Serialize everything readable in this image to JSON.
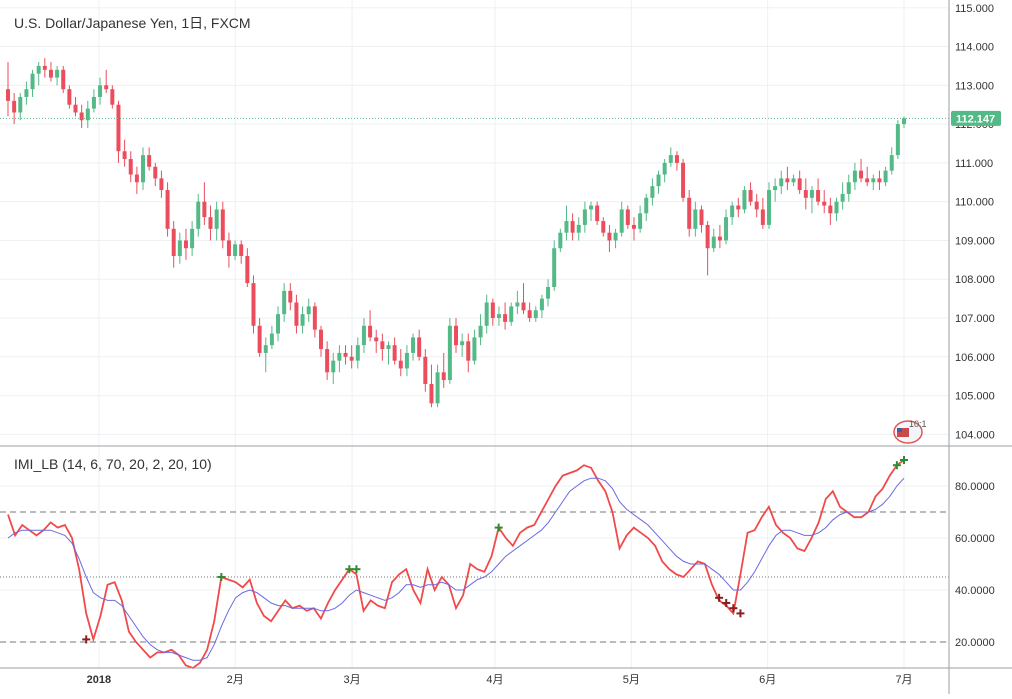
{
  "chart_data": [
    {
      "type": "candlestick",
      "title": "U.S. Dollar/Japanese Yen, 1日, FXCM",
      "ylim": [
        103.7,
        115.2
      ],
      "y_ticks": [
        "115.000",
        "114.000",
        "113.000",
        "112.000",
        "111.000",
        "110.000",
        "109.000",
        "108.000",
        "107.000",
        "106.000",
        "105.000",
        "104.000"
      ],
      "y_tick_values": [
        115,
        114,
        113,
        112,
        111,
        110,
        109,
        108,
        107,
        106,
        105,
        104
      ],
      "last_price": 112.147,
      "last_price_label": "112.147",
      "up_color": "#53b987",
      "down_color": "#eb4d5c",
      "candles": [
        [
          112.9,
          113.6,
          112.2,
          112.6
        ],
        [
          112.6,
          112.8,
          112.0,
          112.3
        ],
        [
          112.3,
          112.8,
          112.1,
          112.7
        ],
        [
          112.7,
          113.1,
          112.5,
          112.9
        ],
        [
          112.9,
          113.4,
          112.7,
          113.3
        ],
        [
          113.3,
          113.6,
          113.0,
          113.5
        ],
        [
          113.5,
          113.7,
          113.2,
          113.4
        ],
        [
          113.4,
          113.6,
          113.1,
          113.2
        ],
        [
          113.2,
          113.5,
          113.0,
          113.4
        ],
        [
          113.4,
          113.5,
          112.8,
          112.9
        ],
        [
          112.9,
          113.0,
          112.4,
          112.5
        ],
        [
          112.5,
          112.7,
          112.2,
          112.3
        ],
        [
          112.3,
          112.5,
          111.9,
          112.1
        ],
        [
          112.1,
          112.6,
          111.9,
          112.4
        ],
        [
          112.4,
          112.9,
          112.3,
          112.7
        ],
        [
          112.7,
          113.2,
          112.5,
          113.0
        ],
        [
          113.0,
          113.4,
          112.8,
          112.9
        ],
        [
          112.9,
          113.0,
          112.4,
          112.5
        ],
        [
          112.5,
          112.6,
          111.0,
          111.3
        ],
        [
          111.3,
          111.6,
          110.9,
          111.1
        ],
        [
          111.1,
          111.3,
          110.5,
          110.7
        ],
        [
          110.7,
          110.9,
          110.2,
          110.5
        ],
        [
          110.5,
          111.4,
          110.3,
          111.2
        ],
        [
          111.2,
          111.4,
          110.8,
          110.9
        ],
        [
          110.9,
          111.0,
          110.4,
          110.6
        ],
        [
          110.6,
          110.8,
          110.1,
          110.3
        ],
        [
          110.3,
          110.5,
          109.1,
          109.3
        ],
        [
          109.3,
          109.5,
          108.3,
          108.6
        ],
        [
          108.6,
          109.2,
          108.4,
          109.0
        ],
        [
          109.0,
          109.3,
          108.5,
          108.8
        ],
        [
          108.8,
          109.5,
          108.6,
          109.3
        ],
        [
          109.3,
          110.2,
          109.1,
          110.0
        ],
        [
          110.0,
          110.5,
          109.4,
          109.6
        ],
        [
          109.6,
          109.9,
          109.0,
          109.3
        ],
        [
          109.3,
          110.0,
          109.0,
          109.8
        ],
        [
          109.8,
          110.0,
          108.8,
          109.0
        ],
        [
          109.0,
          109.2,
          108.3,
          108.6
        ],
        [
          108.6,
          109.0,
          108.5,
          108.9
        ],
        [
          108.9,
          109.0,
          108.4,
          108.6
        ],
        [
          108.6,
          108.8,
          107.8,
          107.9
        ],
        [
          107.9,
          108.1,
          106.6,
          106.8
        ],
        [
          106.8,
          107.0,
          106.0,
          106.1
        ],
        [
          106.1,
          106.5,
          105.6,
          106.3
        ],
        [
          106.3,
          106.8,
          106.2,
          106.6
        ],
        [
          106.6,
          107.3,
          106.4,
          107.1
        ],
        [
          107.1,
          107.9,
          106.9,
          107.7
        ],
        [
          107.7,
          107.9,
          107.2,
          107.4
        ],
        [
          107.4,
          107.6,
          106.6,
          106.8
        ],
        [
          106.8,
          107.3,
          106.6,
          107.1
        ],
        [
          107.1,
          107.5,
          106.9,
          107.3
        ],
        [
          107.3,
          107.4,
          106.5,
          106.7
        ],
        [
          106.7,
          106.8,
          106.0,
          106.2
        ],
        [
          106.2,
          106.4,
          105.4,
          105.6
        ],
        [
          105.6,
          106.1,
          105.3,
          105.9
        ],
        [
          105.9,
          106.3,
          105.6,
          106.1
        ],
        [
          106.1,
          106.3,
          105.8,
          106.0
        ],
        [
          106.0,
          106.3,
          105.7,
          105.9
        ],
        [
          105.9,
          106.5,
          105.7,
          106.3
        ],
        [
          106.3,
          107.0,
          106.1,
          106.8
        ],
        [
          106.8,
          107.2,
          106.4,
          106.5
        ],
        [
          106.5,
          106.7,
          106.1,
          106.4
        ],
        [
          106.4,
          106.6,
          105.9,
          106.2
        ],
        [
          106.2,
          106.4,
          105.8,
          106.3
        ],
        [
          106.3,
          106.5,
          105.8,
          105.9
        ],
        [
          105.9,
          106.2,
          105.5,
          105.7
        ],
        [
          105.7,
          106.3,
          105.5,
          106.1
        ],
        [
          106.1,
          106.6,
          105.9,
          106.5
        ],
        [
          106.5,
          106.7,
          105.9,
          106.0
        ],
        [
          106.0,
          106.2,
          105.1,
          105.3
        ],
        [
          105.3,
          105.8,
          104.7,
          104.8
        ],
        [
          104.8,
          105.8,
          104.7,
          105.6
        ],
        [
          105.6,
          106.1,
          105.2,
          105.4
        ],
        [
          105.4,
          107.0,
          105.3,
          106.8
        ],
        [
          106.8,
          107.0,
          106.1,
          106.3
        ],
        [
          106.3,
          106.6,
          106.0,
          106.4
        ],
        [
          106.4,
          106.6,
          105.6,
          105.9
        ],
        [
          105.9,
          106.7,
          105.8,
          106.5
        ],
        [
          106.5,
          107.1,
          106.3,
          106.8
        ],
        [
          106.8,
          107.6,
          106.6,
          107.4
        ],
        [
          107.4,
          107.5,
          106.8,
          107.0
        ],
        [
          107.0,
          107.3,
          106.8,
          107.1
        ],
        [
          107.1,
          107.4,
          106.7,
          106.9
        ],
        [
          106.9,
          107.4,
          106.8,
          107.3
        ],
        [
          107.3,
          107.7,
          107.1,
          107.4
        ],
        [
          107.4,
          107.9,
          107.1,
          107.2
        ],
        [
          107.2,
          107.4,
          106.9,
          107.0
        ],
        [
          107.0,
          107.3,
          106.9,
          107.2
        ],
        [
          107.2,
          107.6,
          107.0,
          107.5
        ],
        [
          107.5,
          108.0,
          107.3,
          107.8
        ],
        [
          107.8,
          109.0,
          107.7,
          108.8
        ],
        [
          108.8,
          109.3,
          108.7,
          109.2
        ],
        [
          109.2,
          109.9,
          109.0,
          109.5
        ],
        [
          109.5,
          109.7,
          109.0,
          109.2
        ],
        [
          109.2,
          109.6,
          109.0,
          109.4
        ],
        [
          109.4,
          110.0,
          109.2,
          109.8
        ],
        [
          109.8,
          110.0,
          109.5,
          109.9
        ],
        [
          109.9,
          110.0,
          109.4,
          109.5
        ],
        [
          109.5,
          109.6,
          109.1,
          109.2
        ],
        [
          109.2,
          109.4,
          108.7,
          109.0
        ],
        [
          109.0,
          109.3,
          108.8,
          109.2
        ],
        [
          109.2,
          110.0,
          109.1,
          109.8
        ],
        [
          109.8,
          109.9,
          109.3,
          109.4
        ],
        [
          109.4,
          109.6,
          109.0,
          109.3
        ],
        [
          109.3,
          109.9,
          109.2,
          109.7
        ],
        [
          109.7,
          110.2,
          109.5,
          110.1
        ],
        [
          110.1,
          110.6,
          109.9,
          110.4
        ],
        [
          110.4,
          110.8,
          110.2,
          110.7
        ],
        [
          110.7,
          111.1,
          110.5,
          111.0
        ],
        [
          111.0,
          111.4,
          110.9,
          111.2
        ],
        [
          111.2,
          111.3,
          110.8,
          111.0
        ],
        [
          111.0,
          111.1,
          110.0,
          110.1
        ],
        [
          110.1,
          110.3,
          109.1,
          109.3
        ],
        [
          109.3,
          110.0,
          109.1,
          109.8
        ],
        [
          109.8,
          109.9,
          109.2,
          109.4
        ],
        [
          109.4,
          109.5,
          108.1,
          108.8
        ],
        [
          108.8,
          109.3,
          108.7,
          109.1
        ],
        [
          109.1,
          109.4,
          108.8,
          109.0
        ],
        [
          109.0,
          109.8,
          108.9,
          109.6
        ],
        [
          109.6,
          110.0,
          109.4,
          109.9
        ],
        [
          109.9,
          110.1,
          109.6,
          109.8
        ],
        [
          109.8,
          110.4,
          109.7,
          110.3
        ],
        [
          110.3,
          110.5,
          109.9,
          110.0
        ],
        [
          110.0,
          110.2,
          109.6,
          109.8
        ],
        [
          109.8,
          110.1,
          109.3,
          109.4
        ],
        [
          109.4,
          110.5,
          109.3,
          110.3
        ],
        [
          110.3,
          110.6,
          110.0,
          110.4
        ],
        [
          110.4,
          110.8,
          110.2,
          110.6
        ],
        [
          110.6,
          110.9,
          110.3,
          110.5
        ],
        [
          110.5,
          110.7,
          110.4,
          110.6
        ],
        [
          110.6,
          110.8,
          110.2,
          110.3
        ],
        [
          110.3,
          110.6,
          109.8,
          110.1
        ],
        [
          110.1,
          110.4,
          109.7,
          110.3
        ],
        [
          110.3,
          110.6,
          109.9,
          110.0
        ],
        [
          110.0,
          110.3,
          109.7,
          109.9
        ],
        [
          109.9,
          110.1,
          109.4,
          109.7
        ],
        [
          109.7,
          110.1,
          109.5,
          110.0
        ],
        [
          110.0,
          110.5,
          109.8,
          110.2
        ],
        [
          110.2,
          110.7,
          110.0,
          110.5
        ],
        [
          110.5,
          111.0,
          110.3,
          110.8
        ],
        [
          110.8,
          111.1,
          110.5,
          110.6
        ],
        [
          110.6,
          110.9,
          110.4,
          110.5
        ],
        [
          110.5,
          110.7,
          110.3,
          110.6
        ],
        [
          110.6,
          110.8,
          110.3,
          110.5
        ],
        [
          110.5,
          110.9,
          110.4,
          110.8
        ],
        [
          110.8,
          111.4,
          110.7,
          111.2
        ],
        [
          111.2,
          112.1,
          111.1,
          112.0
        ],
        [
          112.0,
          112.2,
          111.9,
          112.15
        ]
      ]
    },
    {
      "type": "line",
      "title": "IMI_LB (14, 6, 70, 20, 2, 20, 10)",
      "ylim": [
        10,
        95
      ],
      "y_ticks": [
        "80.0000",
        "60.0000",
        "40.0000",
        "20.0000"
      ],
      "y_tick_values": [
        80,
        60,
        40,
        20
      ],
      "hlines": [
        70,
        45,
        20
      ],
      "series": [
        {
          "color": "#f04a4a",
          "values": [
            69,
            61,
            65,
            63,
            61,
            63,
            66,
            64,
            65,
            60,
            48,
            31,
            21,
            30,
            42,
            43,
            36,
            24,
            20,
            17,
            14,
            16,
            16,
            17,
            15,
            11,
            10,
            12,
            17,
            28,
            45,
            44,
            43,
            41,
            44,
            35,
            30,
            28,
            32,
            36,
            33,
            34,
            32,
            33,
            29,
            35,
            40,
            44,
            48,
            46,
            32,
            36,
            34,
            33,
            43,
            46,
            48,
            40,
            35,
            48,
            40,
            45,
            42,
            33,
            38,
            50,
            48,
            47,
            53,
            64,
            60,
            57,
            62,
            64,
            65,
            70,
            75,
            80,
            84,
            85,
            86,
            88,
            87,
            82,
            78,
            70,
            56,
            61,
            64,
            62,
            60,
            57,
            51,
            48,
            46,
            45,
            48,
            51,
            50,
            42,
            36,
            34,
            31,
            46,
            62,
            63,
            68,
            72,
            65,
            62,
            60,
            56,
            55,
            60,
            66,
            75,
            78,
            72,
            70,
            68,
            68,
            70,
            76,
            79,
            84,
            88,
            90
          ]
        },
        {
          "color": "#6a6ae0",
          "values": [
            60,
            62,
            63,
            63,
            63,
            63,
            63,
            62,
            61,
            58,
            52,
            45,
            39,
            37,
            36,
            36,
            34,
            30,
            26,
            22,
            19,
            17,
            16,
            16,
            15,
            14,
            13,
            13,
            14,
            19,
            26,
            32,
            37,
            39,
            40,
            39,
            37,
            35,
            34,
            34,
            33,
            33,
            33,
            33,
            32,
            32,
            33,
            35,
            38,
            40,
            39,
            38,
            37,
            36,
            37,
            39,
            42,
            42,
            41,
            42,
            42,
            43,
            42,
            40,
            40,
            42,
            44,
            45,
            47,
            50,
            53,
            55,
            57,
            59,
            61,
            63,
            66,
            70,
            74,
            78,
            80,
            82,
            83,
            83,
            82,
            79,
            74,
            71,
            69,
            67,
            65,
            62,
            59,
            56,
            53,
            51,
            50,
            50,
            50,
            48,
            46,
            43,
            40,
            40,
            43,
            47,
            52,
            57,
            61,
            63,
            63,
            62,
            61,
            61,
            62,
            64,
            67,
            69,
            70,
            70,
            70,
            70,
            71,
            73,
            76,
            80,
            83
          ]
        }
      ],
      "signals": [
        {
          "i": 11,
          "value": 21,
          "color": "#8b1f1f"
        },
        {
          "i": 30,
          "value": 45,
          "color": "#2e8b2e"
        },
        {
          "i": 48,
          "value": 48,
          "color": "#2e8b2e"
        },
        {
          "i": 49,
          "value": 48,
          "color": "#2e8b2e"
        },
        {
          "i": 69,
          "value": 64,
          "color": "#2e8b2e"
        },
        {
          "i": 100,
          "value": 37,
          "color": "#8b1f1f"
        },
        {
          "i": 101,
          "value": 35,
          "color": "#8b1f1f"
        },
        {
          "i": 102,
          "value": 33,
          "color": "#8b1f1f"
        },
        {
          "i": 103,
          "value": 31,
          "color": "#8b1f1f"
        },
        {
          "i": 125,
          "value": 88,
          "color": "#2e8b2e"
        },
        {
          "i": 126,
          "value": 90,
          "color": "#2e8b2e"
        }
      ]
    }
  ],
  "x_axis": {
    "labels": [
      {
        "text": "2018",
        "bold": true
      },
      {
        "text": "2月",
        "bold": false
      },
      {
        "text": "3月",
        "bold": false
      },
      {
        "text": "4月",
        "bold": false
      },
      {
        "text": "5月",
        "bold": false
      },
      {
        "text": "6月",
        "bold": false
      },
      {
        "text": "7月",
        "bold": false
      }
    ]
  },
  "flag_badge_text": "10:1"
}
